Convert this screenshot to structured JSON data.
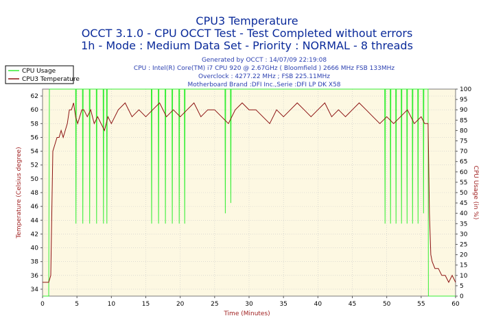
{
  "chart_data": {
    "type": "line",
    "title": "CPU3 Temperature",
    "subtitle": [
      "OCCT 3.1.0 - CPU OCCT Test - Test Completed without errors",
      "1h - Mode : Medium Data Set - Priority : NORMAL - 8 threads"
    ],
    "info": [
      "Generated by OCCT : 14/07/09 22:19:08",
      "CPU : Intel(R) Core(TM) i7 CPU 920 @ 2.67GHz ( Bloomfield ) 2666 MHz FSB 133MHz",
      "Overclock : 4277.22 MHz ; FSB 225.11MHz",
      "Motherboard Brand :DFI Inc.,Serie :DFI LP DK X58"
    ],
    "xlabel": "Time (Minutes)",
    "ylabel": "Temperature (Celsius degree)",
    "y2label": "CPU Usage (in %)",
    "xlim": [
      0,
      60
    ],
    "ylim": [
      33,
      63
    ],
    "y2lim": [
      0,
      100
    ],
    "xticks": [
      0,
      5,
      10,
      15,
      20,
      25,
      30,
      35,
      40,
      45,
      50,
      55,
      60
    ],
    "yticks": [
      34,
      36,
      38,
      40,
      42,
      44,
      46,
      48,
      50,
      52,
      54,
      56,
      58,
      60,
      62
    ],
    "y2ticks": [
      0,
      5,
      10,
      15,
      20,
      25,
      30,
      35,
      40,
      45,
      50,
      55,
      60,
      65,
      70,
      75,
      80,
      85,
      90,
      95,
      100
    ],
    "legend": [
      "CPU Usage",
      "CPU3 Temperature"
    ],
    "series": [
      {
        "name": "CPU Usage",
        "axis": "right",
        "color": "#33ee33",
        "x": [
          0.0,
          0.9,
          1.0,
          1.2,
          4.8,
          4.85,
          4.9,
          5.8,
          5.85,
          5.9,
          6.8,
          6.85,
          6.9,
          7.8,
          7.85,
          7.9,
          8.8,
          8.85,
          8.9,
          9.3,
          9.35,
          9.4,
          15.8,
          15.85,
          15.9,
          16.8,
          16.85,
          16.9,
          17.8,
          17.85,
          17.9,
          18.8,
          18.85,
          18.9,
          19.8,
          19.85,
          19.9,
          20.6,
          20.65,
          20.7,
          26.5,
          26.55,
          26.6,
          27.3,
          27.35,
          27.4,
          49.7,
          49.75,
          49.8,
          50.5,
          50.55,
          50.6,
          51.3,
          51.35,
          51.4,
          52.1,
          52.15,
          52.2,
          52.9,
          52.95,
          53.0,
          53.7,
          53.75,
          53.8,
          54.5,
          54.55,
          54.6,
          55.3,
          55.35,
          55.4,
          56.0,
          56.05,
          56.2,
          60.0
        ],
        "values": [
          0,
          0,
          100,
          100,
          100,
          35,
          100,
          100,
          35,
          100,
          100,
          35,
          100,
          100,
          35,
          100,
          100,
          35,
          100,
          100,
          35,
          100,
          100,
          35,
          100,
          100,
          35,
          100,
          100,
          35,
          100,
          100,
          35,
          100,
          100,
          35,
          100,
          100,
          35,
          100,
          100,
          40,
          100,
          100,
          45,
          100,
          100,
          35,
          100,
          100,
          35,
          100,
          100,
          35,
          100,
          100,
          35,
          100,
          100,
          35,
          100,
          100,
          35,
          100,
          100,
          35,
          100,
          100,
          40,
          100,
          100,
          0,
          0,
          0
        ]
      },
      {
        "name": "CPU3 Temperature",
        "axis": "left",
        "color": "#8b1010",
        "x": [
          0.0,
          0.3,
          0.6,
          0.9,
          1.2,
          1.5,
          1.8,
          2.1,
          2.4,
          2.7,
          3.0,
          3.3,
          3.6,
          3.9,
          4.2,
          4.5,
          4.8,
          5.1,
          5.4,
          5.7,
          6.0,
          6.5,
          7.0,
          7.5,
          8.0,
          8.5,
          9.0,
          9.5,
          10.0,
          11.0,
          12.0,
          13.0,
          14.0,
          15.0,
          16.0,
          17.0,
          18.0,
          19.0,
          20.0,
          21.0,
          22.0,
          23.0,
          24.0,
          25.0,
          26.0,
          27.0,
          28.0,
          29.0,
          30.0,
          31.0,
          32.0,
          33.0,
          34.0,
          35.0,
          36.0,
          37.0,
          38.0,
          39.0,
          40.0,
          41.0,
          42.0,
          43.0,
          44.0,
          45.0,
          46.0,
          47.0,
          48.0,
          49.0,
          50.0,
          51.0,
          52.0,
          53.0,
          54.0,
          55.0,
          55.5,
          56.0,
          56.2,
          56.4,
          56.6,
          57.0,
          57.5,
          58.0,
          58.5,
          59.0,
          59.5,
          60.0
        ],
        "values": [
          35,
          35,
          35,
          35,
          36,
          54,
          55,
          56,
          56,
          57,
          56,
          57,
          58,
          60,
          60,
          61,
          59,
          58,
          59,
          60,
          60,
          59,
          60,
          58,
          59,
          58,
          57,
          59,
          58,
          60,
          61,
          59,
          60,
          59,
          60,
          61,
          59,
          60,
          59,
          60,
          61,
          59,
          60,
          60,
          59,
          58,
          60,
          61,
          60,
          60,
          59,
          58,
          60,
          59,
          60,
          61,
          60,
          59,
          60,
          61,
          59,
          60,
          59,
          60,
          61,
          60,
          59,
          58,
          59,
          58,
          59,
          60,
          58,
          59,
          58,
          58,
          45,
          39,
          38,
          37,
          37,
          36,
          36,
          35,
          36,
          35
        ]
      }
    ]
  }
}
